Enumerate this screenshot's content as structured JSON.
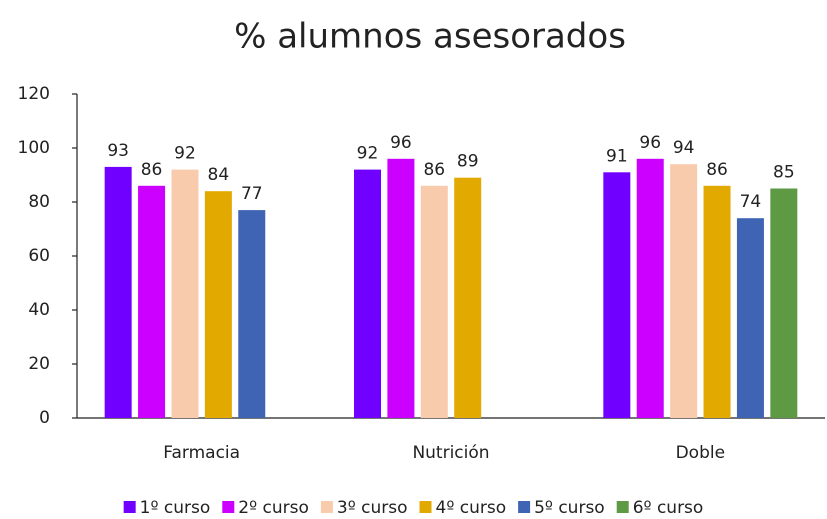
{
  "chart_data": {
    "type": "bar",
    "title": "% alumnos asesorados",
    "categories": [
      "Farmacia",
      "Nutrición",
      "Doble"
    ],
    "series": [
      {
        "name": "1º curso",
        "color": "#7000ff",
        "values": [
          93,
          92,
          91
        ]
      },
      {
        "name": "2º curso",
        "color": "#cc00ff",
        "values": [
          86,
          96,
          96
        ]
      },
      {
        "name": "3º curso",
        "color": "#f8cbad",
        "values": [
          92,
          86,
          94
        ]
      },
      {
        "name": "4º curso",
        "color": "#e2a900",
        "values": [
          84,
          89,
          86
        ]
      },
      {
        "name": "5º curso",
        "color": "#3f64b4",
        "values": [
          77,
          null,
          74
        ]
      },
      {
        "name": "6º curso",
        "color": "#5e9a44",
        "values": [
          null,
          null,
          85
        ]
      }
    ],
    "ylim": [
      0,
      120
    ],
    "yticks": [
      0,
      20,
      40,
      60,
      80,
      100,
      120
    ],
    "grid": false,
    "legend": "bottom"
  }
}
